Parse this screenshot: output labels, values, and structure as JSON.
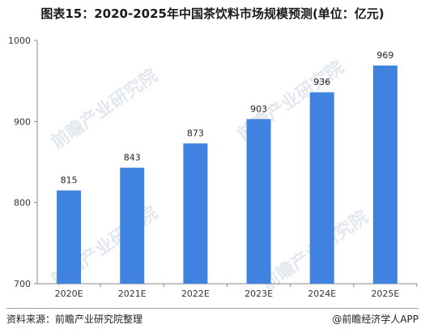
{
  "title": "图表15：2020-2025年中国茶饮料市场规模预测(单位：亿元)",
  "footer": {
    "source": "资料来源：前瞻产业研究院整理",
    "brand": "@前瞻经济学人APP"
  },
  "watermark": "前瞻产业研究院",
  "colors": {
    "bar": "#3f82e0",
    "axis": "#888888",
    "grid": "#dddddd"
  },
  "chart_data": {
    "type": "bar",
    "title": "",
    "xlabel": "",
    "ylabel": "",
    "categories": [
      "2020E",
      "2021E",
      "2022E",
      "2023E",
      "2024E",
      "2025E"
    ],
    "values": [
      815,
      843,
      873,
      903,
      936,
      969
    ],
    "ylim": [
      700,
      1000
    ],
    "yticks": [
      700,
      800,
      900,
      1000
    ],
    "grid": false,
    "data_labels": true
  }
}
